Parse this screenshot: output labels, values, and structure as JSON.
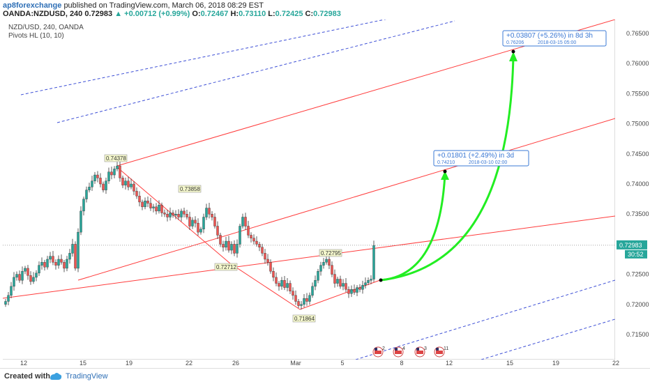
{
  "header": {
    "author": "ap8forexchange",
    "published_text": "published on TradingView.com, March 06, 2018 08:29 EST",
    "symbol_tf": "OANDA:NZDUSD, 240",
    "last": "0.72983",
    "change_arrow": "▲",
    "change": "+0.00712 (+0.99%)",
    "o_label": "O:",
    "o": "0.72467",
    "h_label": "H:",
    "h": "0.73110",
    "l_label": "L:",
    "l": "0.72425",
    "c_label": "C:",
    "c": "0.72983"
  },
  "legend": {
    "line1": "NZD/USD, 240, OANDA",
    "line2": "Pivots HL (10, 10)"
  },
  "chart_data": {
    "type": "candlestick",
    "y_ticks": [
      "0.76500",
      "0.76000",
      "0.75500",
      "0.75000",
      "0.74500",
      "0.74000",
      "0.73500",
      "0.72500",
      "0.72000",
      "0.71500"
    ],
    "ylim": [
      0.711,
      0.768
    ],
    "x_ticks": [
      "12",
      "15",
      "19",
      "22",
      "26",
      "Mar",
      "5",
      "8",
      "12",
      "15",
      "19",
      "22"
    ],
    "current_price": "0.72983",
    "countdown": "30:52",
    "pivot_labels": [
      "0.74378",
      "0.73858",
      "0.72712",
      "0.71864",
      "0.72795"
    ],
    "callouts": [
      {
        "line1": "+0.01801 (+2.49%) in 3d",
        "line2a": "0.74210",
        "line2b": "2018-03-10  02:00"
      },
      {
        "line1": "+0.03807 (+5.26%) in 8d 3h",
        "line2a": "0.76206",
        "line2b": "2018-03-15  05:00"
      }
    ],
    "event_counts": [
      "2",
      "4",
      "3",
      "11"
    ],
    "colors": {
      "up": "#26a69a",
      "down": "#ef5350",
      "channel": "#ff3b3b",
      "outer": "#3d4fd6",
      "arrow": "#22ee22",
      "callout": "#3a78d4"
    }
  },
  "footer": {
    "created": "Created with",
    "brand": "TradingView"
  }
}
